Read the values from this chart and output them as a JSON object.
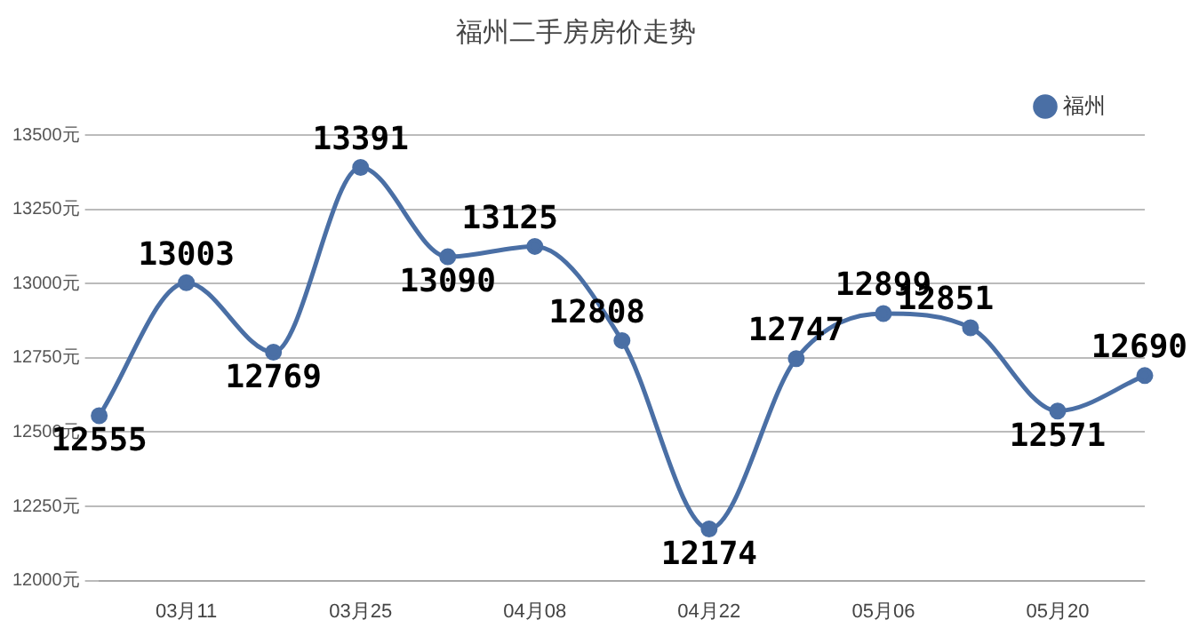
{
  "chart_data": {
    "type": "line",
    "title": "福州二手房房价走势",
    "categories": [
      null,
      "03月11",
      null,
      "03月25",
      null,
      "04月08",
      null,
      "04月22",
      null,
      "05月06",
      null,
      "05月20",
      null
    ],
    "series": [
      {
        "name": "福州",
        "color": "#4a6fa5",
        "values": [
          12555,
          13003,
          12769,
          13391,
          13090,
          13125,
          12808,
          12174,
          12747,
          12899,
          12851,
          12571,
          12690
        ]
      }
    ],
    "ylim": [
      12000,
      13500
    ],
    "yticks": [
      {
        "value": 12000,
        "label": "12000元"
      },
      {
        "value": 12250,
        "label": "12250元"
      },
      {
        "value": 12500,
        "label": "12500元"
      },
      {
        "value": 12750,
        "label": "12750元"
      },
      {
        "value": 13000,
        "label": "13000元"
      },
      {
        "value": 13250,
        "label": "13250元"
      },
      {
        "value": 13500,
        "label": "13500元"
      }
    ],
    "grid": "y",
    "legend": "top right",
    "marker": "circle",
    "line_style": "solid",
    "data_labels": true
  }
}
